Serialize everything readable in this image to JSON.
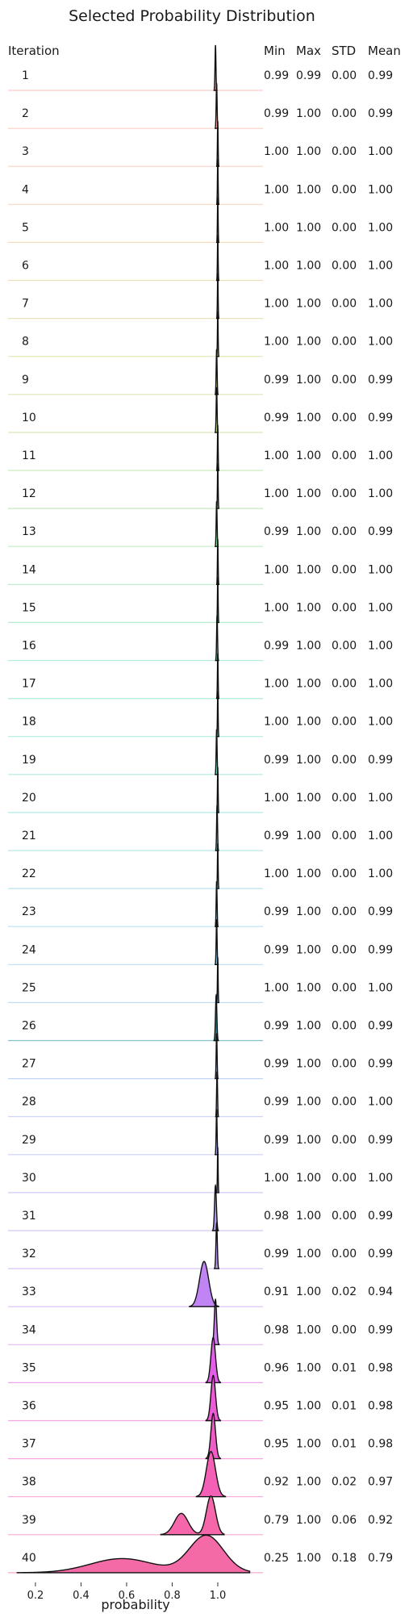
{
  "chart_data": {
    "type": "ridgeline",
    "title": "Selected Probability Distribution",
    "xlabel": "probability",
    "row_header": "Iteration",
    "stat_headers": [
      "Min",
      "Max",
      "STD",
      "Mean"
    ],
    "xlim": [
      0.08,
      1.17
    ],
    "xticks": [
      0.2,
      0.4,
      0.6,
      0.8,
      1.0
    ],
    "xtick_labels": [
      "0.2",
      "0.4",
      "0.6",
      "0.8",
      "1.0"
    ],
    "grid": false,
    "rows": [
      {
        "iteration": "1",
        "min": "0.99",
        "max": "0.99",
        "std": "0.00",
        "mean": "0.99",
        "center": 0.99,
        "spread": 0.002,
        "color": "#f7a6a6"
      },
      {
        "iteration": "2",
        "min": "0.99",
        "max": "1.00",
        "std": "0.00",
        "mean": "0.99",
        "center": 0.995,
        "spread": 0.002,
        "color": "#f7aaa0"
      },
      {
        "iteration": "3",
        "min": "1.00",
        "max": "1.00",
        "std": "0.00",
        "mean": "1.00",
        "center": 1.0,
        "spread": 0.0015,
        "color": "#f5b09a"
      },
      {
        "iteration": "4",
        "min": "1.00",
        "max": "1.00",
        "std": "0.00",
        "mean": "1.00",
        "center": 1.0,
        "spread": 0.0015,
        "color": "#f2b792"
      },
      {
        "iteration": "5",
        "min": "1.00",
        "max": "1.00",
        "std": "0.00",
        "mean": "1.00",
        "center": 1.0,
        "spread": 0.0015,
        "color": "#ecbe8a"
      },
      {
        "iteration": "6",
        "min": "1.00",
        "max": "1.00",
        "std": "0.00",
        "mean": "1.00",
        "center": 1.0,
        "spread": 0.0015,
        "color": "#e3c584"
      },
      {
        "iteration": "7",
        "min": "1.00",
        "max": "1.00",
        "std": "0.00",
        "mean": "1.00",
        "center": 1.0,
        "spread": 0.0015,
        "color": "#d9cb80"
      },
      {
        "iteration": "8",
        "min": "1.00",
        "max": "1.00",
        "std": "0.00",
        "mean": "1.00",
        "center": 1.0,
        "spread": 0.0015,
        "color": "#cdd07e"
      },
      {
        "iteration": "9",
        "min": "0.99",
        "max": "1.00",
        "std": "0.00",
        "mean": "0.99",
        "center": 0.995,
        "spread": 0.002,
        "color": "#c0d47e"
      },
      {
        "iteration": "10",
        "min": "0.99",
        "max": "1.00",
        "std": "0.00",
        "mean": "0.99",
        "center": 0.995,
        "spread": 0.002,
        "color": "#b2d880"
      },
      {
        "iteration": "11",
        "min": "1.00",
        "max": "1.00",
        "std": "0.00",
        "mean": "1.00",
        "center": 1.0,
        "spread": 0.0015,
        "color": "#a4db84"
      },
      {
        "iteration": "12",
        "min": "1.00",
        "max": "1.00",
        "std": "0.00",
        "mean": "1.00",
        "center": 1.0,
        "spread": 0.0015,
        "color": "#96dd8a"
      },
      {
        "iteration": "13",
        "min": "0.99",
        "max": "1.00",
        "std": "0.00",
        "mean": "0.99",
        "center": 0.995,
        "spread": 0.002,
        "color": "#8adf92"
      },
      {
        "iteration": "14",
        "min": "1.00",
        "max": "1.00",
        "std": "0.00",
        "mean": "1.00",
        "center": 1.0,
        "spread": 0.0015,
        "color": "#80e09b"
      },
      {
        "iteration": "15",
        "min": "1.00",
        "max": "1.00",
        "std": "0.00",
        "mean": "1.00",
        "center": 1.0,
        "spread": 0.0015,
        "color": "#79e0a5"
      },
      {
        "iteration": "16",
        "min": "0.99",
        "max": "1.00",
        "std": "0.00",
        "mean": "1.00",
        "center": 0.997,
        "spread": 0.002,
        "color": "#74e0af"
      },
      {
        "iteration": "17",
        "min": "1.00",
        "max": "1.00",
        "std": "0.00",
        "mean": "1.00",
        "center": 1.0,
        "spread": 0.0015,
        "color": "#71dfb9"
      },
      {
        "iteration": "18",
        "min": "1.00",
        "max": "1.00",
        "std": "0.00",
        "mean": "1.00",
        "center": 1.0,
        "spread": 0.0015,
        "color": "#70ddc3"
      },
      {
        "iteration": "19",
        "min": "0.99",
        "max": "1.00",
        "std": "0.00",
        "mean": "0.99",
        "center": 0.995,
        "spread": 0.002,
        "color": "#70dbcc"
      },
      {
        "iteration": "20",
        "min": "1.00",
        "max": "1.00",
        "std": "0.00",
        "mean": "1.00",
        "center": 1.0,
        "spread": 0.0015,
        "color": "#72d8d4"
      },
      {
        "iteration": "21",
        "min": "0.99",
        "max": "1.00",
        "std": "0.00",
        "mean": "1.00",
        "center": 0.997,
        "spread": 0.002,
        "color": "#75d5db"
      },
      {
        "iteration": "22",
        "min": "1.00",
        "max": "1.00",
        "std": "0.00",
        "mean": "1.00",
        "center": 1.0,
        "spread": 0.0015,
        "color": "#79d1e1"
      },
      {
        "iteration": "23",
        "min": "0.99",
        "max": "1.00",
        "std": "0.00",
        "mean": "0.99",
        "center": 0.995,
        "spread": 0.002,
        "color": "#7eccE6"
      },
      {
        "iteration": "24",
        "min": "0.99",
        "max": "1.00",
        "std": "0.00",
        "mean": "0.99",
        "center": 0.995,
        "spread": 0.002,
        "color": "#84c7ea"
      },
      {
        "iteration": "25",
        "min": "1.00",
        "max": "1.00",
        "std": "0.00",
        "mean": "1.00",
        "center": 1.0,
        "spread": 0.0015,
        "color": "#8bc1ed"
      },
      {
        "iteration": "26",
        "min": "0.99",
        "max": "1.00",
        "std": "0.00",
        "mean": "0.99",
        "center": 0.993,
        "spread": 0.003,
        "color": "#1f8fa0"
      },
      {
        "iteration": "27",
        "min": "0.99",
        "max": "1.00",
        "std": "0.00",
        "mean": "0.99",
        "center": 0.995,
        "spread": 0.002,
        "color": "#97b5f0"
      },
      {
        "iteration": "28",
        "min": "0.99",
        "max": "1.00",
        "std": "0.00",
        "mean": "1.00",
        "center": 0.997,
        "spread": 0.002,
        "color": "#9eaff1"
      },
      {
        "iteration": "29",
        "min": "0.99",
        "max": "1.00",
        "std": "0.00",
        "mean": "0.99",
        "center": 0.995,
        "spread": 0.002,
        "color": "#a5a8f1"
      },
      {
        "iteration": "30",
        "min": "1.00",
        "max": "1.00",
        "std": "0.00",
        "mean": "1.00",
        "center": 1.0,
        "spread": 0.0015,
        "color": "#aca2f0"
      },
      {
        "iteration": "31",
        "min": "0.98",
        "max": "1.00",
        "std": "0.00",
        "mean": "0.99",
        "center": 0.99,
        "spread": 0.004,
        "color": "#b49bef"
      },
      {
        "iteration": "32",
        "min": "0.99",
        "max": "1.00",
        "std": "0.00",
        "mean": "0.99",
        "center": 0.995,
        "spread": 0.003,
        "color": "#bb94ee"
      },
      {
        "iteration": "33",
        "min": "0.91",
        "max": "1.00",
        "std": "0.02",
        "mean": "0.94",
        "center": 0.94,
        "spread": 0.02,
        "color": "#c084f5"
      },
      {
        "iteration": "34",
        "min": "0.98",
        "max": "1.00",
        "std": "0.00",
        "mean": "0.99",
        "center": 0.99,
        "spread": 0.005,
        "color": "#cf7ef0"
      },
      {
        "iteration": "35",
        "min": "0.96",
        "max": "1.00",
        "std": "0.01",
        "mean": "0.98",
        "center": 0.98,
        "spread": 0.01,
        "color": "#e35ee8"
      },
      {
        "iteration": "36",
        "min": "0.95",
        "max": "1.00",
        "std": "0.01",
        "mean": "0.98",
        "center": 0.98,
        "spread": 0.01,
        "color": "#ec5ad6"
      },
      {
        "iteration": "37",
        "min": "0.95",
        "max": "1.00",
        "std": "0.01",
        "mean": "0.98",
        "center": 0.98,
        "spread": 0.01,
        "color": "#f05cc6"
      },
      {
        "iteration": "38",
        "min": "0.92",
        "max": "1.00",
        "std": "0.02",
        "mean": "0.97",
        "center": 0.97,
        "spread": 0.02,
        "color": "#f460b6"
      },
      {
        "iteration": "39",
        "min": "0.79",
        "max": "1.00",
        "std": "0.06",
        "mean": "0.92",
        "center": 0.92,
        "spread": 0.06,
        "color": "#f566aa"
      },
      {
        "iteration": "40",
        "min": "0.25",
        "max": "1.00",
        "std": "0.18",
        "mean": "0.79",
        "center": 0.79,
        "spread": 0.18,
        "color": "#f46aa6"
      }
    ]
  }
}
